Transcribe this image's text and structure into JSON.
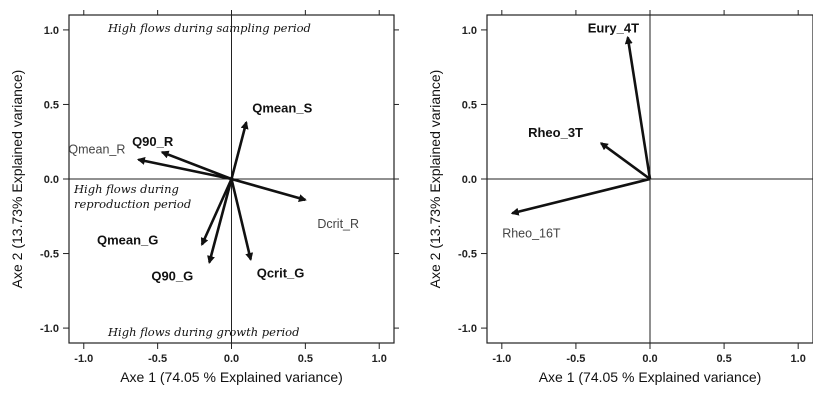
{
  "chart_data": [
    {
      "type": "scatter",
      "subtype": "biplot-vectors",
      "xlabel": "Axe 1 (74.05 % Explained variance)",
      "ylabel": "Axe 2 (13.73% Explained variance)",
      "xlim": [
        -1.1,
        1.1
      ],
      "ylim": [
        -1.1,
        1.1
      ],
      "xticks": [
        "-1.0",
        "-0.5",
        "0.0",
        "0.5",
        "1.0"
      ],
      "yticks": [
        "1.0",
        "0.5",
        "0.0",
        "-0.5",
        "-1.0"
      ],
      "grid": false,
      "vectors": [
        {
          "label": "Qmean_S",
          "x": 0.1,
          "y": 0.38,
          "style": "bold"
        },
        {
          "label": "Q90_R",
          "x": -0.47,
          "y": 0.18,
          "style": "bold"
        },
        {
          "label": "Qmean_R",
          "x": -0.63,
          "y": 0.13,
          "style": "plain"
        },
        {
          "label": "Dcrit_R",
          "x": 0.5,
          "y": -0.14,
          "style": "plain"
        },
        {
          "label": "Qmean_G",
          "x": -0.2,
          "y": -0.44,
          "style": "bold"
        },
        {
          "label": "Q90_G",
          "x": -0.15,
          "y": -0.56,
          "style": "bold"
        },
        {
          "label": "Qcrit_G",
          "x": 0.13,
          "y": -0.54,
          "style": "bold"
        }
      ],
      "annotations": [
        "High flows during sampling period",
        "High flows during",
        "reproduction period",
        "High flows during growth period"
      ]
    },
    {
      "type": "scatter",
      "subtype": "biplot-vectors",
      "xlabel": "Axe 1 (74.05 % Explained variance)",
      "ylabel": "Axe 2 (13.73% Explained variance)",
      "xlim": [
        -1.1,
        1.1
      ],
      "ylim": [
        -1.1,
        1.1
      ],
      "xticks": [
        "-1.0",
        "-0.5",
        "0.0",
        "0.5",
        "1.0"
      ],
      "yticks": [
        "1.0",
        "0.5",
        "0.0",
        "-0.5",
        "-1.0"
      ],
      "grid": false,
      "vectors": [
        {
          "label": "Eury_4T",
          "x": -0.15,
          "y": 0.95,
          "style": "bold"
        },
        {
          "label": "Rheo_3T",
          "x": -0.33,
          "y": 0.24,
          "style": "bold"
        },
        {
          "label": "Rheo_16T",
          "x": -0.93,
          "y": -0.23,
          "style": "plain"
        }
      ],
      "annotations": []
    }
  ]
}
